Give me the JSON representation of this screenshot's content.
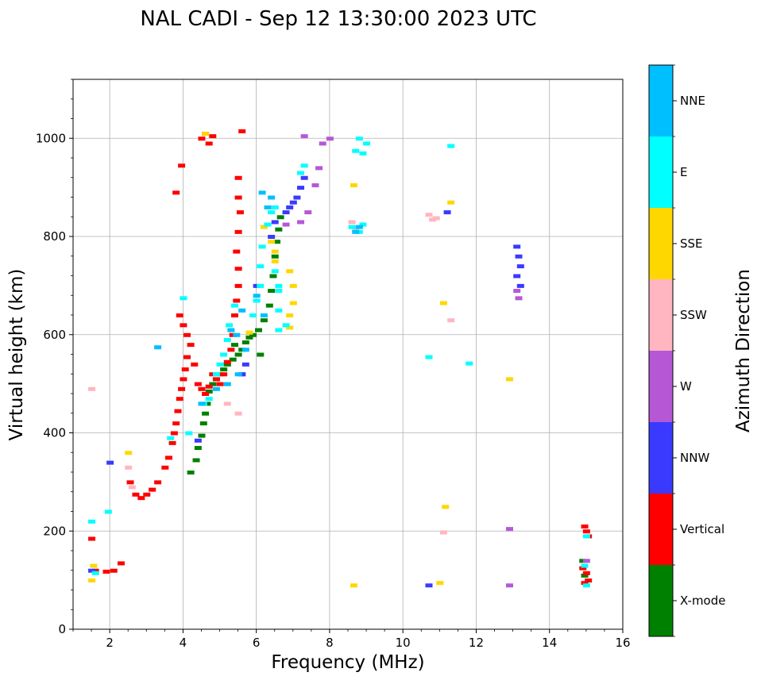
{
  "chart_data": {
    "type": "scatter",
    "title": "NAL CADI - Sep 12 13:30:00 2023 UTC",
    "xlabel": "Frequency (MHz)",
    "ylabel": "Virtual height (km)",
    "xlim": [
      1,
      16
    ],
    "ylim": [
      0,
      1120
    ],
    "xticks": [
      2,
      4,
      6,
      8,
      10,
      12,
      14,
      16
    ],
    "yticks": [
      0,
      200,
      400,
      600,
      800,
      1000
    ],
    "grid": true,
    "colorbar": {
      "label": "Azimuth Direction",
      "categories": [
        "X-mode",
        "Vertical",
        "NNW",
        "W",
        "SSW",
        "SSE",
        "E",
        "NNE"
      ],
      "colors": [
        "#008000",
        "#ff0000",
        "#3a3aff",
        "#b658d6",
        "#ffb6c1",
        "#ffd700",
        "#00ffff",
        "#00bfff"
      ]
    },
    "series": [
      {
        "name": "X-mode",
        "points": [
          [
            4.2,
            320
          ],
          [
            4.35,
            345
          ],
          [
            4.4,
            370
          ],
          [
            4.5,
            395
          ],
          [
            4.55,
            420
          ],
          [
            4.6,
            440
          ],
          [
            4.65,
            460
          ],
          [
            4.7,
            485
          ],
          [
            4.8,
            500
          ],
          [
            4.9,
            510
          ],
          [
            5.0,
            520
          ],
          [
            5.1,
            530
          ],
          [
            5.2,
            540
          ],
          [
            5.35,
            550
          ],
          [
            5.5,
            560
          ],
          [
            5.6,
            570
          ],
          [
            5.7,
            585
          ],
          [
            5.8,
            595
          ],
          [
            5.9,
            600
          ],
          [
            6.05,
            610
          ],
          [
            6.2,
            630
          ],
          [
            6.35,
            660
          ],
          [
            6.4,
            690
          ],
          [
            6.45,
            720
          ],
          [
            6.5,
            760
          ],
          [
            6.55,
            790
          ],
          [
            6.6,
            815
          ],
          [
            6.65,
            840
          ],
          [
            5.4,
            580
          ],
          [
            5.6,
            520
          ],
          [
            6.1,
            560
          ],
          [
            14.9,
            140
          ],
          [
            14.95,
            110
          ]
        ]
      },
      {
        "name": "Vertical",
        "points": [
          [
            1.5,
            185
          ],
          [
            1.6,
            120
          ],
          [
            1.9,
            118
          ],
          [
            2.1,
            120
          ],
          [
            2.3,
            135
          ],
          [
            2.55,
            300
          ],
          [
            2.7,
            275
          ],
          [
            2.85,
            268
          ],
          [
            3.0,
            275
          ],
          [
            3.15,
            285
          ],
          [
            3.3,
            300
          ],
          [
            3.5,
            330
          ],
          [
            3.6,
            350
          ],
          [
            3.7,
            380
          ],
          [
            3.75,
            400
          ],
          [
            3.8,
            420
          ],
          [
            3.85,
            445
          ],
          [
            3.9,
            470
          ],
          [
            3.95,
            490
          ],
          [
            4.0,
            510
          ],
          [
            4.05,
            530
          ],
          [
            4.1,
            555
          ],
          [
            4.2,
            580
          ],
          [
            4.3,
            540
          ],
          [
            4.4,
            500
          ],
          [
            4.5,
            490
          ],
          [
            4.6,
            480
          ],
          [
            4.7,
            495
          ],
          [
            4.8,
            520
          ],
          [
            4.9,
            510
          ],
          [
            5.0,
            500
          ],
          [
            5.1,
            520
          ],
          [
            5.2,
            545
          ],
          [
            5.3,
            570
          ],
          [
            5.35,
            600
          ],
          [
            5.4,
            640
          ],
          [
            5.45,
            670
          ],
          [
            5.5,
            700
          ],
          [
            5.5,
            735
          ],
          [
            5.45,
            770
          ],
          [
            5.5,
            810
          ],
          [
            5.55,
            850
          ],
          [
            5.5,
            880
          ],
          [
            5.5,
            920
          ],
          [
            4.5,
            1000
          ],
          [
            4.6,
            1010
          ],
          [
            4.7,
            990
          ],
          [
            4.8,
            1005
          ],
          [
            3.95,
            945
          ],
          [
            3.8,
            890
          ],
          [
            4.0,
            620
          ],
          [
            4.1,
            600
          ],
          [
            3.9,
            640
          ],
          [
            5.6,
            1015
          ],
          [
            14.95,
            210
          ],
          [
            15.0,
            200
          ],
          [
            15.05,
            190
          ],
          [
            14.9,
            125
          ],
          [
            15.0,
            115
          ],
          [
            15.05,
            100
          ],
          [
            14.95,
            95
          ]
        ]
      },
      {
        "name": "NNW",
        "points": [
          [
            1.5,
            120
          ],
          [
            2.0,
            340
          ],
          [
            5.6,
            520
          ],
          [
            5.7,
            540
          ],
          [
            6.0,
            700
          ],
          [
            6.4,
            800
          ],
          [
            6.5,
            830
          ],
          [
            6.8,
            850
          ],
          [
            6.9,
            860
          ],
          [
            7.0,
            870
          ],
          [
            7.1,
            880
          ],
          [
            7.2,
            900
          ],
          [
            7.3,
            920
          ],
          [
            10.7,
            90
          ],
          [
            11.2,
            850
          ],
          [
            13.1,
            780
          ],
          [
            13.15,
            760
          ],
          [
            13.2,
            740
          ],
          [
            13.1,
            720
          ],
          [
            13.2,
            700
          ],
          [
            4.4,
            385
          ]
        ]
      },
      {
        "name": "W",
        "points": [
          [
            6.8,
            825
          ],
          [
            7.2,
            830
          ],
          [
            7.4,
            850
          ],
          [
            7.6,
            905
          ],
          [
            7.7,
            940
          ],
          [
            7.8,
            990
          ],
          [
            8.0,
            1000
          ],
          [
            7.3,
            1005
          ],
          [
            13.1,
            690
          ],
          [
            13.15,
            675
          ],
          [
            12.9,
            205
          ],
          [
            12.9,
            90
          ],
          [
            15.0,
            140
          ]
        ]
      },
      {
        "name": "SSW",
        "points": [
          [
            1.5,
            490
          ],
          [
            2.5,
            330
          ],
          [
            2.6,
            290
          ],
          [
            10.7,
            845
          ],
          [
            10.8,
            835
          ],
          [
            10.9,
            838
          ],
          [
            11.3,
            630
          ],
          [
            11.1,
            198
          ],
          [
            8.6,
            830
          ],
          [
            8.7,
            815
          ],
          [
            5.2,
            460
          ],
          [
            5.5,
            440
          ]
        ]
      },
      {
        "name": "SSE",
        "points": [
          [
            1.5,
            100
          ],
          [
            1.55,
            130
          ],
          [
            2.5,
            360
          ],
          [
            4.6,
            1010
          ],
          [
            6.2,
            820
          ],
          [
            6.4,
            790
          ],
          [
            6.5,
            770
          ],
          [
            6.9,
            730
          ],
          [
            7.0,
            700
          ],
          [
            7.0,
            665
          ],
          [
            6.9,
            640
          ],
          [
            6.9,
            615
          ],
          [
            6.5,
            750
          ],
          [
            8.65,
            905
          ],
          [
            11.1,
            665
          ],
          [
            11.15,
            250
          ],
          [
            12.9,
            510
          ],
          [
            8.65,
            90
          ],
          [
            11.0,
            95
          ],
          [
            11.3,
            870
          ],
          [
            5.8,
            605
          ]
        ]
      },
      {
        "name": "E",
        "points": [
          [
            1.5,
            220
          ],
          [
            1.6,
            115
          ],
          [
            1.95,
            240
          ],
          [
            3.65,
            390
          ],
          [
            4.0,
            675
          ],
          [
            4.15,
            400
          ],
          [
            4.55,
            460
          ],
          [
            4.7,
            470
          ],
          [
            4.9,
            520
          ],
          [
            5.0,
            540
          ],
          [
            5.1,
            560
          ],
          [
            5.2,
            590
          ],
          [
            5.25,
            620
          ],
          [
            5.4,
            660
          ],
          [
            5.9,
            640
          ],
          [
            6.0,
            670
          ],
          [
            6.1,
            700
          ],
          [
            6.1,
            740
          ],
          [
            6.15,
            780
          ],
          [
            6.3,
            825
          ],
          [
            6.4,
            850
          ],
          [
            6.5,
            860
          ],
          [
            6.6,
            690
          ],
          [
            6.6,
            650
          ],
          [
            6.6,
            610
          ],
          [
            6.5,
            730
          ],
          [
            6.6,
            700
          ],
          [
            6.8,
            620
          ],
          [
            7.2,
            930
          ],
          [
            7.3,
            945
          ],
          [
            8.6,
            820
          ],
          [
            8.8,
            810
          ],
          [
            8.9,
            825
          ],
          [
            8.8,
            1000
          ],
          [
            9.0,
            990
          ],
          [
            8.7,
            975
          ],
          [
            8.9,
            970
          ],
          [
            10.7,
            555
          ],
          [
            11.3,
            985
          ],
          [
            11.8,
            542
          ],
          [
            15.0,
            190
          ],
          [
            15.0,
            90
          ],
          [
            14.95,
            130
          ]
        ]
      },
      {
        "name": "NNE",
        "points": [
          [
            3.3,
            575
          ],
          [
            4.5,
            460
          ],
          [
            4.9,
            490
          ],
          [
            5.2,
            500
          ],
          [
            5.3,
            610
          ],
          [
            5.45,
            600
          ],
          [
            5.6,
            650
          ],
          [
            5.5,
            520
          ],
          [
            6.15,
            890
          ],
          [
            6.3,
            860
          ],
          [
            6.4,
            880
          ],
          [
            6.0,
            680
          ],
          [
            6.2,
            640
          ],
          [
            5.7,
            570
          ],
          [
            8.7,
            810
          ],
          [
            8.8,
            820
          ]
        ]
      }
    ]
  }
}
